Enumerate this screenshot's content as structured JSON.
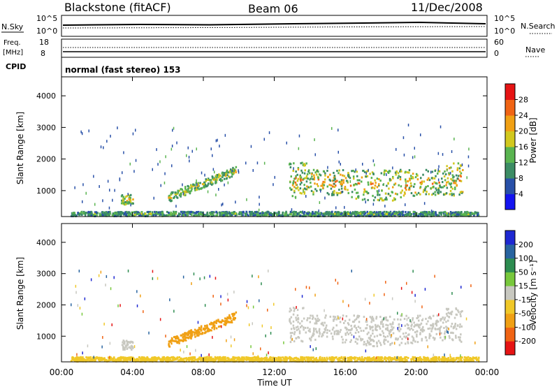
{
  "header": {
    "station": "Blackstone (fitACF)",
    "beam": "Beam 06",
    "date": "11/Dec/2008"
  },
  "strip": {
    "n_sky_label": "N.Sky",
    "n_sky_ticks": [
      "10^5",
      "10^0"
    ],
    "n_search_label": "N.Search",
    "n_search_ticks": [
      "10^5",
      "10^0"
    ],
    "freq_label": "Freq.",
    "freq_unit": "[MHz]",
    "freq_ticks": [
      "18",
      "8"
    ],
    "nave_label": "Nave",
    "nave_ticks": [
      "60",
      "0"
    ],
    "cpid_label": "CPID",
    "cpid_text": "normal (fast stereo) 153"
  },
  "axes": {
    "xlabel": "Time UT",
    "x_ticks": [
      "00:00",
      "04:00",
      "08:00",
      "12:00",
      "16:00",
      "20:00",
      "00:00"
    ],
    "ylabel": "Slant Range [km]",
    "y_ticks": [
      "1000",
      "2000",
      "3000",
      "4000"
    ]
  },
  "colorbars": {
    "power": {
      "label": "Power [dB]",
      "ticks": [
        "4",
        "8",
        "12",
        "16",
        "20",
        "24",
        "28"
      ],
      "colors": [
        "#1414f0",
        "#2850a8",
        "#3c8c64",
        "#5ab450",
        "#d2c81e",
        "#f0a014",
        "#f06414",
        "#e61414"
      ]
    },
    "velocity": {
      "label": "Velocity [m s⁻¹]",
      "ticks": [
        "200",
        "100",
        "50",
        "15",
        "-15",
        "-50",
        "-100",
        "-200"
      ],
      "colors": [
        "#1e28d2",
        "#2864a0",
        "#2d8c50",
        "#78c83c",
        "#c8c8c0",
        "#f0c828",
        "#f0a014",
        "#f06414",
        "#e61414"
      ]
    }
  },
  "chart_data": [
    {
      "type": "heatmap",
      "panel": "power",
      "title": "Blackstone (fitACF) Beam 06 11/Dec/2008",
      "xlabel": "Time UT",
      "ylabel": "Slant Range [km]",
      "xlim_hours": [
        0,
        24
      ],
      "ylim_km": [
        180,
        4600
      ],
      "value_label": "Power [dB]",
      "value_range": [
        0,
        30
      ],
      "features": [
        {
          "name": "ground scatter band",
          "t_start": 0.5,
          "t_end": 23.5,
          "r_km": [
            180,
            320
          ],
          "power_db": [
            6,
            18
          ]
        },
        {
          "name": "patch 03:30",
          "t_start": 3.3,
          "t_end": 4.0,
          "r_km": [
            550,
            850
          ],
          "power_db": [
            10,
            26
          ]
        },
        {
          "name": "rising streak",
          "t_start": 6.0,
          "t_end": 9.8,
          "r_km": [
            700,
            1700
          ],
          "power_db": [
            8,
            24
          ]
        },
        {
          "name": "main echo band",
          "t_start": 12.8,
          "t_end": 22.6,
          "r_km": [
            700,
            2000
          ],
          "power_db": [
            8,
            28
          ]
        }
      ]
    },
    {
      "type": "heatmap",
      "panel": "velocity",
      "xlabel": "Time UT",
      "ylabel": "Slant Range [km]",
      "xlim_hours": [
        0,
        24
      ],
      "ylim_km": [
        180,
        4600
      ],
      "value_label": "Velocity [m s⁻¹]",
      "value_range": [
        -200,
        200
      ],
      "features": [
        {
          "name": "ground scatter band",
          "t_start": 0.5,
          "t_end": 23.5,
          "r_km": [
            180,
            320
          ],
          "velocity": [
            -50,
            -15
          ]
        },
        {
          "name": "patch 03:30",
          "t_start": 3.3,
          "t_end": 4.0,
          "r_km": [
            550,
            850
          ],
          "velocity": [
            -15,
            15
          ]
        },
        {
          "name": "rising streak",
          "t_start": 6.0,
          "t_end": 9.8,
          "r_km": [
            700,
            1700
          ],
          "velocity": [
            -100,
            -50
          ]
        },
        {
          "name": "main echo band",
          "t_start": 12.8,
          "t_end": 22.6,
          "r_km": [
            700,
            2000
          ],
          "velocity": [
            -15,
            15
          ]
        }
      ]
    }
  ]
}
